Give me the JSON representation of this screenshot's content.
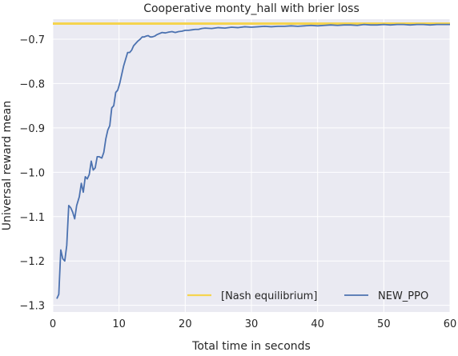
{
  "chart_data": {
    "type": "line",
    "title": "Cooperative monty_hall with brier loss",
    "xlabel": "Total time in seconds",
    "ylabel": "Universal reward mean",
    "xlim": [
      0,
      60
    ],
    "ylim": [
      -1.315,
      -0.655
    ],
    "xticks": [
      0,
      10,
      20,
      30,
      40,
      50,
      60
    ],
    "yticks": [
      -1.3,
      -1.2,
      -1.1,
      -1.0,
      -0.9,
      -0.8,
      -0.7
    ],
    "grid": true,
    "legend_position": "bottom-right",
    "hlines": [
      {
        "name": "[Nash equilibrium]",
        "y": -0.665,
        "color": "#f5d44f"
      }
    ],
    "series": [
      {
        "name": "NEW_PPO",
        "color": "#4c72b0",
        "x": [
          0.6,
          0.9,
          1.2,
          1.5,
          1.8,
          2.1,
          2.4,
          2.7,
          3.0,
          3.3,
          3.6,
          4.0,
          4.3,
          4.6,
          4.9,
          5.2,
          5.5,
          5.8,
          6.1,
          6.4,
          6.7,
          7.0,
          7.4,
          7.7,
          8.0,
          8.3,
          8.6,
          8.9,
          9.2,
          9.5,
          9.8,
          10.1,
          10.4,
          10.7,
          11.0,
          11.3,
          11.6,
          11.9,
          12.2,
          12.5,
          12.8,
          13.2,
          13.5,
          13.8,
          14.1,
          14.4,
          14.7,
          15.0,
          15.4,
          15.7,
          16.0,
          16.5,
          17.0,
          17.5,
          18.0,
          18.5,
          19.0,
          19.5,
          20.0,
          20.5,
          21.0,
          21.5,
          22.0,
          22.5,
          23.0,
          24.0,
          25.0,
          26.0,
          27.0,
          28.0,
          29.0,
          30.0,
          31.0,
          32.0,
          33.0,
          34.0,
          35.0,
          36.0,
          37.0,
          38.0,
          39.0,
          40.0,
          41.0,
          42.0,
          43.0,
          44.0,
          45.0,
          46.0,
          47.0,
          48.0,
          49.0,
          50.0,
          51.0,
          52.0,
          53.0,
          54.0,
          55.0,
          56.0,
          57.0,
          58.0,
          59.0,
          60.0
        ],
        "values": [
          -1.285,
          -1.275,
          -1.175,
          -1.195,
          -1.2,
          -1.165,
          -1.075,
          -1.08,
          -1.09,
          -1.105,
          -1.075,
          -1.055,
          -1.025,
          -1.045,
          -1.01,
          -1.015,
          -1.005,
          -0.975,
          -0.995,
          -0.99,
          -0.965,
          -0.965,
          -0.968,
          -0.955,
          -0.925,
          -0.905,
          -0.895,
          -0.855,
          -0.85,
          -0.82,
          -0.815,
          -0.8,
          -0.78,
          -0.76,
          -0.745,
          -0.73,
          -0.73,
          -0.725,
          -0.715,
          -0.71,
          -0.705,
          -0.7,
          -0.695,
          -0.695,
          -0.693,
          -0.692,
          -0.695,
          -0.695,
          -0.693,
          -0.69,
          -0.688,
          -0.685,
          -0.686,
          -0.684,
          -0.683,
          -0.685,
          -0.683,
          -0.682,
          -0.68,
          -0.68,
          -0.679,
          -0.678,
          -0.678,
          -0.676,
          -0.675,
          -0.676,
          -0.674,
          -0.675,
          -0.673,
          -0.674,
          -0.672,
          -0.673,
          -0.672,
          -0.671,
          -0.672,
          -0.671,
          -0.671,
          -0.67,
          -0.671,
          -0.67,
          -0.669,
          -0.67,
          -0.669,
          -0.668,
          -0.669,
          -0.668,
          -0.668,
          -0.669,
          -0.667,
          -0.668,
          -0.668,
          -0.667,
          -0.668,
          -0.667,
          -0.667,
          -0.668,
          -0.667,
          -0.667,
          -0.668,
          -0.667,
          -0.667,
          -0.667
        ]
      }
    ]
  }
}
